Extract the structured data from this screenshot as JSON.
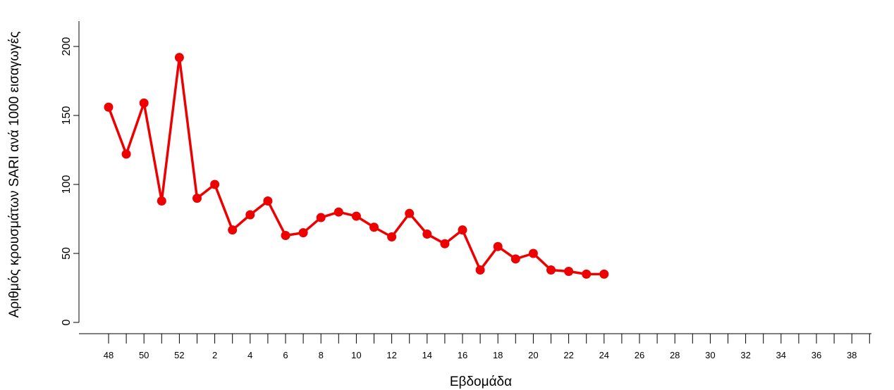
{
  "chart_data": {
    "type": "line",
    "xlabel": "Εβδομάδα",
    "ylabel": "Αριθμός κρουσμάτων SARI ανά 1000 εισαγωγές",
    "ylim": [
      0,
      200
    ],
    "y_ticks": [
      0,
      50,
      100,
      150,
      200
    ],
    "x_ticks": [
      "48",
      "49",
      "50",
      "51",
      "52",
      "1",
      "2",
      "3",
      "4",
      "5",
      "6",
      "7",
      "8",
      "9",
      "10",
      "11",
      "12",
      "13",
      "14",
      "15",
      "16",
      "17",
      "18",
      "19",
      "20",
      "21",
      "22",
      "23",
      "24",
      "25",
      "26",
      "27",
      "28",
      "29",
      "30",
      "31",
      "32",
      "33",
      "34",
      "35",
      "36",
      "37",
      "38",
      "39"
    ],
    "x_tick_labels_shown": [
      "48",
      "50",
      "52",
      "2",
      "4",
      "6",
      "8",
      "10",
      "12",
      "14",
      "16",
      "18",
      "20",
      "22",
      "24",
      "26",
      "28",
      "30",
      "32",
      "34",
      "36",
      "38"
    ],
    "series": [
      {
        "color": "#ee0000",
        "x": [
          "48",
          "49",
          "50",
          "51",
          "52",
          "1",
          "2",
          "3",
          "4",
          "5",
          "6",
          "7",
          "8",
          "9",
          "10",
          "11",
          "12",
          "13",
          "14",
          "15",
          "16",
          "17",
          "18",
          "19",
          "20",
          "21",
          "22",
          "23",
          "24"
        ],
        "values": [
          156,
          122,
          159,
          88,
          192,
          90,
          100,
          67,
          78,
          88,
          63,
          65,
          76,
          80,
          77,
          69,
          62,
          79,
          64,
          57,
          67,
          38,
          55,
          46,
          50,
          38,
          37,
          35,
          35
        ]
      }
    ],
    "grid": false,
    "legend": "none"
  }
}
